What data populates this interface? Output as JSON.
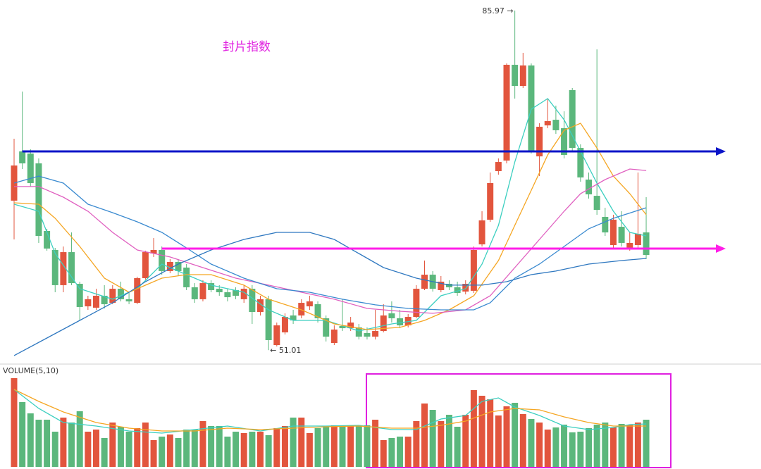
{
  "chart_data": {
    "type": "candlestick",
    "title": "封片指数",
    "title_color": "#e020e0",
    "up_color": "#e2553d",
    "down_color": "#5bb77c",
    "ylim": [
      49.72,
      87.06
    ],
    "open": [
      66.4,
      71.47,
      71.25,
      70.24,
      63.28,
      61.32,
      57.7,
      61.1,
      57.84,
      55.52,
      55.38,
      56.61,
      55.88,
      57.33,
      56.25,
      55.88,
      58.42,
      60.96,
      61.32,
      59.15,
      60.09,
      59.51,
      57.48,
      56.25,
      57.91,
      57.33,
      56.97,
      57.19,
      56.25,
      57.33,
      54.94,
      56.25,
      51.53,
      52.84,
      54.58,
      54.58,
      55.52,
      55.74,
      54.29,
      51.75,
      53.49,
      53.27,
      53.35,
      52.77,
      52.4,
      52.98,
      54.8,
      54.29,
      53.56,
      54.43,
      57.33,
      58.78,
      57.19,
      57.84,
      57.48,
      57.04,
      57.12,
      61.9,
      64.44,
      69.44,
      70.53,
      80.39,
      78.21,
      80.32,
      70.96,
      74.15,
      74.73,
      73.86,
      77.78,
      71.83,
      68.57,
      66.9,
      64.73,
      61.83,
      63.71,
      61.47,
      61.83,
      63.13
    ],
    "high": [
      72.78,
      77.63,
      71.69,
      70.75,
      63.5,
      61.54,
      61.68,
      63.13,
      58.06,
      56.61,
      57.33,
      57.7,
      57.7,
      58.06,
      56.97,
      58.57,
      61.25,
      62.55,
      61.68,
      60.38,
      60.38,
      59.87,
      57.91,
      58.2,
      58.2,
      57.7,
      57.33,
      57.48,
      57.7,
      57.7,
      56.61,
      56.61,
      53.85,
      54.8,
      55.16,
      56.25,
      56.61,
      56.03,
      54.58,
      53.56,
      56.25,
      54.43,
      53.71,
      53.35,
      55.16,
      55.74,
      56.03,
      55.16,
      54.72,
      57.7,
      60.23,
      59.15,
      58.64,
      58.2,
      58.06,
      58.2,
      61.68,
      65.31,
      69.3,
      70.75,
      80.53,
      85.97,
      81.62,
      80.53,
      74.37,
      76.91,
      76.18,
      75.6,
      78.0,
      72.2,
      69.3,
      81.98,
      65.67,
      64.95,
      65.31,
      63.13,
      69.3,
      66.76
    ],
    "low": [
      62.41,
      69.66,
      67.85,
      62.05,
      61.25,
      56.97,
      56.97,
      57.7,
      54.07,
      55.16,
      55.16,
      55.3,
      55.74,
      56.03,
      55.74,
      55.74,
      58.28,
      60.6,
      58.78,
      58.93,
      58.64,
      57.19,
      55.88,
      56.03,
      56.97,
      56.61,
      56.03,
      56.25,
      55.88,
      53.71,
      54.58,
      51.01,
      51.39,
      52.62,
      53.71,
      54.29,
      55.16,
      53.85,
      51.9,
      51.53,
      52.98,
      52.98,
      52.11,
      52.11,
      52.11,
      52.84,
      53.85,
      53.27,
      53.35,
      54.29,
      57.19,
      57.04,
      56.97,
      57.19,
      56.61,
      56.75,
      56.9,
      61.68,
      64.22,
      69.08,
      70.24,
      76.91,
      78.0,
      71.25,
      68.93,
      73.86,
      73.28,
      70.75,
      71.47,
      68.35,
      66.61,
      64.95,
      62.77,
      61.54,
      61.68,
      61.25,
      61.54,
      60.38
    ],
    "close": [
      70.02,
      70.24,
      68.21,
      62.77,
      61.47,
      57.7,
      61.1,
      57.91,
      55.45,
      56.25,
      56.61,
      55.74,
      57.33,
      56.25,
      56.03,
      58.42,
      61.1,
      61.32,
      59.15,
      60.09,
      59.15,
      57.48,
      56.25,
      57.91,
      57.19,
      56.97,
      56.46,
      56.61,
      57.33,
      54.94,
      56.25,
      52.04,
      53.56,
      54.43,
      54.07,
      55.88,
      56.03,
      54.29,
      52.4,
      53.13,
      53.27,
      53.85,
      52.4,
      52.4,
      52.98,
      54.58,
      54.29,
      53.56,
      54.43,
      57.33,
      58.78,
      57.33,
      58.06,
      57.48,
      56.9,
      57.84,
      61.32,
      64.37,
      68.21,
      70.38,
      80.39,
      78.21,
      80.32,
      71.47,
      74.01,
      74.59,
      73.65,
      71.11,
      71.83,
      68.79,
      67.05,
      65.45,
      63.13,
      64.44,
      62.05,
      62.05,
      62.99,
      60.81
    ],
    "ma_lines": [
      {
        "color": "#3ccfc0",
        "x": [
          0,
          3,
          5,
          8,
          12,
          15,
          18,
          21,
          24,
          28,
          31,
          34,
          38,
          42,
          46,
          49,
          52,
          55,
          57,
          59,
          61,
          63,
          65,
          67,
          69,
          71,
          73,
          75,
          77
        ],
        "values": [
          66.03,
          65.31,
          60.96,
          57.33,
          56.25,
          57.33,
          59.87,
          58.78,
          57.7,
          56.97,
          55.16,
          54.07,
          54.07,
          52.98,
          53.71,
          54.07,
          56.61,
          57.33,
          59.87,
          63.86,
          70.38,
          75.82,
          76.91,
          74.73,
          71.47,
          68.21,
          65.31,
          63.13,
          62.77
        ]
      },
      {
        "color": "#f5a623",
        "x": [
          0,
          3,
          5,
          8,
          11,
          14,
          18,
          21,
          24,
          28,
          31,
          35,
          39,
          43,
          47,
          50,
          53,
          56,
          59,
          61,
          63,
          65,
          67,
          69,
          71,
          73,
          75,
          77
        ],
        "values": [
          66.18,
          66.03,
          64.58,
          61.68,
          58.42,
          56.97,
          58.42,
          58.78,
          58.78,
          57.7,
          56.25,
          55.16,
          53.71,
          53.13,
          53.35,
          54.07,
          55.16,
          56.61,
          60.23,
          63.86,
          67.48,
          71.11,
          73.65,
          74.37,
          71.83,
          68.93,
          67.12,
          64.95
        ]
      },
      {
        "color": "#e060c0",
        "x": [
          0,
          3,
          6,
          9,
          12,
          15,
          19,
          23,
          27,
          31,
          35,
          39,
          43,
          47,
          51,
          55,
          58,
          61,
          64,
          67,
          69,
          72,
          75,
          77
        ],
        "values": [
          67.85,
          67.85,
          66.76,
          65.31,
          63.13,
          61.32,
          60.6,
          59.51,
          58.42,
          57.7,
          56.97,
          56.25,
          55.3,
          55.01,
          54.8,
          55.16,
          56.61,
          59.51,
          62.41,
          65.31,
          67.12,
          68.57,
          69.66,
          69.51
        ]
      },
      {
        "color": "#3a8ad0",
        "x": [
          0,
          3,
          6,
          9,
          12,
          15,
          18,
          21,
          24,
          28,
          32,
          36,
          40,
          44,
          48,
          52,
          56,
          58,
          61,
          64,
          67,
          70,
          73,
          77
        ],
        "values": [
          68.21,
          68.93,
          68.21,
          66.03,
          65.16,
          64.22,
          63.13,
          61.54,
          59.87,
          58.42,
          57.33,
          56.97,
          56.25,
          55.67,
          55.3,
          55.16,
          55.16,
          55.88,
          58.42,
          59.87,
          61.68,
          63.5,
          64.58,
          65.67
        ]
      },
      {
        "color": "#2f78c0",
        "x": [
          0,
          4,
          8,
          12,
          16,
          20,
          24,
          28,
          32,
          36,
          39,
          42,
          45,
          49,
          53,
          57,
          60,
          63,
          66,
          70,
          74,
          77
        ],
        "values": [
          50.45,
          52.26,
          54.07,
          55.88,
          58.06,
          59.87,
          61.32,
          62.41,
          63.13,
          63.13,
          62.41,
          60.96,
          59.51,
          58.42,
          57.7,
          57.7,
          58.06,
          58.78,
          59.15,
          59.87,
          60.23,
          60.45
        ]
      }
    ],
    "hlines": [
      {
        "value": 71.47,
        "start": 1,
        "color": "#0a14c8"
      },
      {
        "value": 61.47,
        "start": 18,
        "color": "#ff1ee8"
      }
    ],
    "annotations": [
      {
        "text": "85.97 →",
        "value": 85.97,
        "index": 61,
        "side": "left"
      },
      {
        "text": "← 51.01",
        "value": 51.01,
        "index": 31,
        "side": "right"
      }
    ],
    "volume": {
      "label": "VOLUME(5,10)",
      "ylim": [
        0,
        143
      ],
      "values": [
        126,
        92,
        76,
        67,
        67,
        50,
        70,
        63,
        79,
        50,
        53,
        41,
        63,
        57,
        50,
        55,
        63,
        38,
        43,
        46,
        41,
        53,
        53,
        65,
        58,
        58,
        43,
        50,
        48,
        50,
        50,
        45,
        55,
        58,
        70,
        70,
        48,
        55,
        58,
        59,
        59,
        59,
        59,
        59,
        67,
        38,
        41,
        43,
        43,
        65,
        90,
        81,
        65,
        74,
        57,
        74,
        109,
        101,
        96,
        73,
        86,
        91,
        75,
        68,
        63,
        53,
        56,
        60,
        49,
        50,
        55,
        60,
        63,
        56,
        61,
        60,
        63,
        67
      ],
      "ma_lines": [
        {
          "color": "#3ccfc0",
          "x": [
            0,
            3,
            6,
            10,
            14,
            18,
            22,
            26,
            30,
            34,
            38,
            42,
            46,
            49,
            52,
            55,
            57,
            59,
            61,
            64,
            67,
            70,
            73,
            75,
            77
          ],
          "values": [
            110,
            83,
            63,
            58,
            51,
            48,
            53,
            58,
            51,
            58,
            58,
            59,
            53,
            53,
            68,
            73,
            93,
            98,
            85,
            73,
            58,
            53,
            56,
            60,
            61
          ]
        },
        {
          "color": "#f5a623",
          "x": [
            0,
            3,
            6,
            10,
            14,
            18,
            22,
            26,
            30,
            34,
            38,
            42,
            46,
            49,
            52,
            55,
            58,
            61,
            64,
            67,
            70,
            73,
            77
          ],
          "values": [
            110,
            93,
            78,
            63,
            55,
            51,
            51,
            55,
            53,
            55,
            57,
            58,
            55,
            55,
            59,
            65,
            78,
            83,
            81,
            71,
            63,
            58,
            58
          ]
        }
      ]
    }
  }
}
